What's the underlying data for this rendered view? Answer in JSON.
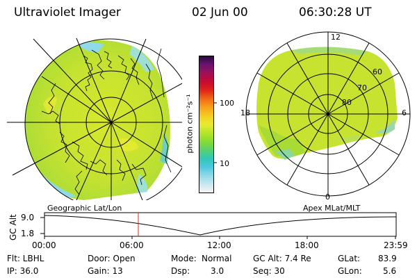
{
  "header": {
    "title": "Ultraviolet Imager",
    "date": "02 Jun 00",
    "time": "06:30:28 UT"
  },
  "colorbar": {
    "unit_label": "photon cm⁻²s⁻¹",
    "tick_labels": [
      "100",
      "10"
    ],
    "colors": [
      "#f5f5f5",
      "#c8e6f0",
      "#8fd9e8",
      "#4cc8e0",
      "#30c8b8",
      "#58d26c",
      "#86dc32",
      "#b8e42a",
      "#e6ea30",
      "#f5cd20",
      "#f7a01a",
      "#f06a16",
      "#e02418",
      "#c80a30",
      "#a0105a",
      "#6a1470",
      "#2a0a40"
    ]
  },
  "left_map": {
    "label": "Geographic Lat/Lon"
  },
  "right_map": {
    "label": "Apex MLat/MLT",
    "mlt_labels": {
      "top": "12",
      "left": "18",
      "right": "6",
      "bottom": "0"
    },
    "lat_labels": [
      "60",
      "70",
      "80"
    ]
  },
  "alt_plot": {
    "axis_label": "GC Alt",
    "y_ticks": [
      "9.0",
      "1.8"
    ],
    "time_ticks": [
      "00:00",
      "06:00",
      "12:00",
      "18:00",
      "23:59"
    ],
    "marker_color": "#e02418"
  },
  "footer": {
    "filt": "Flt: LBHL",
    "ip": "IP: 36.0",
    "door": "Door: Open",
    "gain": "Gain: 13",
    "mode_key": "Mode:",
    "mode_val": "Normal",
    "dsp_key": "Dsp:",
    "dsp_val": "3.0",
    "gcalt": "GC Alt: 7.4 Re",
    "seq": "Seq: 30",
    "glat_key": "GLat:",
    "glat_val": "83.9",
    "glon_key": "GLon:",
    "glon_val": "5.6"
  }
}
